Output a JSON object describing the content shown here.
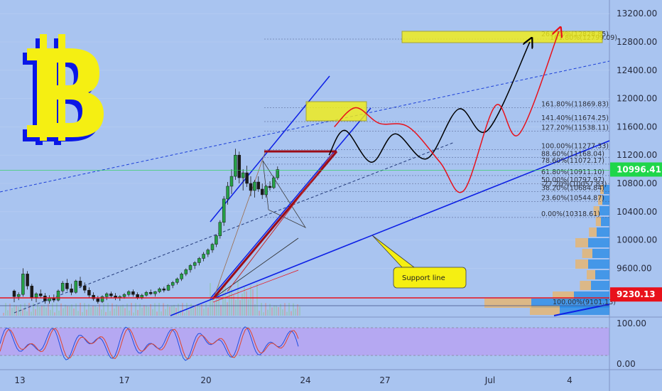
{
  "chart_data": {
    "type": "candlestick",
    "price_axis": {
      "ticks": [
        13200,
        12800,
        12400,
        12000,
        11600,
        11200,
        10800,
        10400,
        10000,
        9600
      ],
      "tick_labels": [
        "13200.00",
        "12800.00",
        "12400.00",
        "12000.00",
        "11600.00",
        "11200.00",
        "10800.00",
        "10400.00",
        "10000.00",
        "9600.00"
      ]
    },
    "oscillator_axis": {
      "ticks": [
        100,
        0
      ],
      "tick_labels": [
        "100.00",
        "0.00"
      ]
    },
    "date_axis": {
      "labels": [
        "13",
        "17",
        "20",
        "24",
        "27",
        "Jul",
        "4"
      ]
    },
    "price_tags": [
      {
        "value": 10996.41,
        "label": "10996.41",
        "color": "#1fd64a"
      },
      {
        "value": 9230.13,
        "label": "9230.13",
        "color": "#e8111b"
      }
    ],
    "fib_retracement": [
      {
        "label": "0.00%(10318.61)",
        "value": 10318.61
      },
      {
        "label": "23.60%(10544.87)",
        "value": 10544.87
      },
      {
        "label": "38.20%(10684.84)",
        "value": 10684.84
      },
      {
        "label": "50.00%(10797.97)",
        "value": 10797.97
      },
      {
        "label": "61.80%(10911.10)",
        "value": 10911.1
      },
      {
        "label": "78.60%(11072.17)",
        "value": 11072.17
      },
      {
        "label": "88.60%(11168.04)",
        "value": 11168.04
      },
      {
        "label": "100.00%(11277.33)",
        "value": 11277.33
      },
      {
        "label": "127.20%(11538.11)",
        "value": 11538.11
      },
      {
        "label": "141.40%(11674.25)",
        "value": 11674.25
      },
      {
        "label": "161.80%(11869.83)",
        "value": 11869.83
      }
    ],
    "fib_extra_labels": [
      "-27.20%(10057.83)",
      "261.80%(12828.85)",
      "161.80%(12799.09)",
      "100.00%(9101.13)"
    ],
    "annotations": {
      "support_line": "Support line"
    },
    "candles": [
      [
        9280,
        9300,
        9120,
        9200
      ],
      [
        9200,
        9260,
        9150,
        9230
      ],
      [
        9230,
        9600,
        9200,
        9520
      ],
      [
        9520,
        9560,
        9300,
        9350
      ],
      [
        9350,
        9380,
        9140,
        9190
      ],
      [
        9190,
        9260,
        9120,
        9240
      ],
      [
        9240,
        9300,
        9180,
        9210
      ],
      [
        9210,
        9250,
        9100,
        9140
      ],
      [
        9140,
        9220,
        9100,
        9180
      ],
      [
        9180,
        9230,
        9120,
        9150
      ],
      [
        9150,
        9300,
        9130,
        9280
      ],
      [
        9280,
        9420,
        9250,
        9390
      ],
      [
        9390,
        9450,
        9280,
        9310
      ],
      [
        9310,
        9380,
        9220,
        9260
      ],
      [
        9260,
        9440,
        9240,
        9420
      ],
      [
        9420,
        9480,
        9320,
        9350
      ],
      [
        9350,
        9400,
        9250,
        9290
      ],
      [
        9290,
        9330,
        9180,
        9220
      ],
      [
        9220,
        9260,
        9140,
        9170
      ],
      [
        9170,
        9210,
        9100,
        9130
      ],
      [
        9130,
        9220,
        9110,
        9200
      ],
      [
        9200,
        9260,
        9150,
        9240
      ],
      [
        9240,
        9270,
        9180,
        9210
      ],
      [
        9210,
        9250,
        9150,
        9180
      ],
      [
        9180,
        9220,
        9140,
        9200
      ],
      [
        9200,
        9250,
        9170,
        9230
      ],
      [
        9230,
        9290,
        9200,
        9270
      ],
      [
        9270,
        9300,
        9200,
        9230
      ],
      [
        9230,
        9260,
        9160,
        9190
      ],
      [
        9190,
        9240,
        9160,
        9220
      ],
      [
        9220,
        9280,
        9200,
        9260
      ],
      [
        9260,
        9300,
        9220,
        9240
      ],
      [
        9240,
        9280,
        9200,
        9270
      ],
      [
        9270,
        9330,
        9250,
        9310
      ],
      [
        9310,
        9340,
        9260,
        9290
      ],
      [
        9290,
        9380,
        9280,
        9360
      ],
      [
        9360,
        9420,
        9320,
        9400
      ],
      [
        9400,
        9470,
        9370,
        9450
      ],
      [
        9450,
        9540,
        9420,
        9520
      ],
      [
        9520,
        9600,
        9490,
        9580
      ],
      [
        9580,
        9660,
        9540,
        9640
      ],
      [
        9640,
        9700,
        9590,
        9680
      ],
      [
        9680,
        9760,
        9640,
        9740
      ],
      [
        9740,
        9830,
        9700,
        9800
      ],
      [
        9800,
        9880,
        9760,
        9860
      ],
      [
        9860,
        9960,
        9820,
        9940
      ],
      [
        9940,
        10080,
        9900,
        10060
      ],
      [
        10060,
        10280,
        10020,
        10250
      ],
      [
        10250,
        10620,
        10200,
        10580
      ],
      [
        10580,
        10820,
        10500,
        10760
      ],
      [
        10760,
        11000,
        10650,
        10900
      ],
      [
        10900,
        11290,
        10850,
        11200
      ],
      [
        11200,
        11250,
        10800,
        10880
      ],
      [
        10880,
        11000,
        10700,
        10950
      ],
      [
        10950,
        11050,
        10750,
        10800
      ],
      [
        10800,
        10900,
        10620,
        10700
      ],
      [
        10700,
        10850,
        10600,
        10820
      ],
      [
        10820,
        10900,
        10680,
        10720
      ],
      [
        10720,
        10800,
        10580,
        10640
      ],
      [
        10640,
        10780,
        10600,
        10760
      ],
      [
        10760,
        10830,
        10700,
        10740
      ],
      [
        10740,
        10900,
        10720,
        10880
      ],
      [
        10880,
        11040,
        10850,
        10996
      ]
    ],
    "projections": [
      {
        "name": "black",
        "points": [
          [
            24.7,
            11200
          ],
          [
            25.3,
            11550
          ],
          [
            26.3,
            11100
          ],
          [
            27.2,
            11500
          ],
          [
            28.4,
            11150
          ],
          [
            29.6,
            11850
          ],
          [
            30.7,
            11550
          ],
          [
            32.3,
            12800
          ]
        ]
      },
      {
        "name": "red",
        "points": [
          [
            24.9,
            11600
          ],
          [
            25.7,
            11870
          ],
          [
            26.6,
            11650
          ],
          [
            27.7,
            11600
          ],
          [
            28.9,
            11100
          ],
          [
            29.8,
            10700
          ],
          [
            31.0,
            11900
          ],
          [
            31.9,
            11500
          ],
          [
            33.4,
            12950
          ]
        ]
      }
    ]
  }
}
